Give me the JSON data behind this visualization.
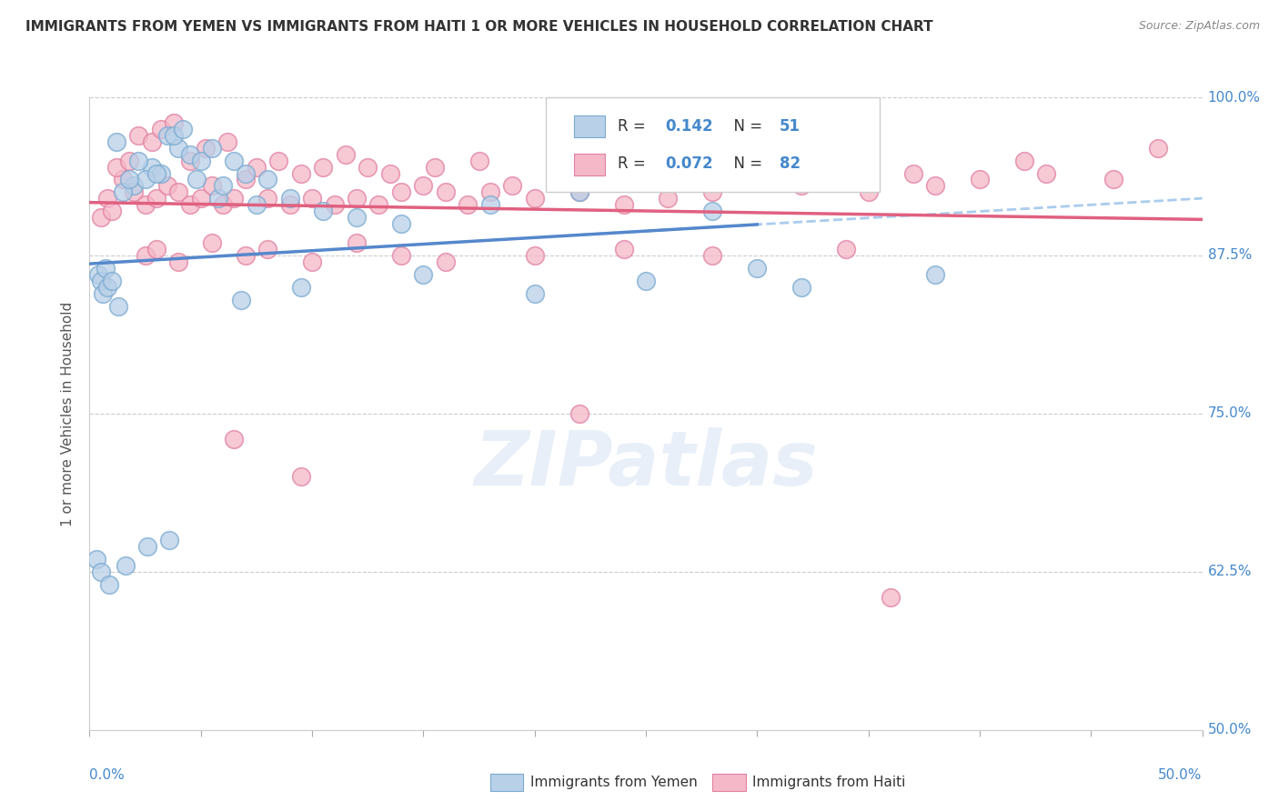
{
  "title": "IMMIGRANTS FROM YEMEN VS IMMIGRANTS FROM HAITI 1 OR MORE VEHICLES IN HOUSEHOLD CORRELATION CHART",
  "source": "Source: ZipAtlas.com",
  "ylabel_label": "1 or more Vehicles in Household",
  "legend_label1": "Immigrants from Yemen",
  "legend_label2": "Immigrants from Haiti",
  "legend_r1_val": "0.142",
  "legend_n1_val": "51",
  "legend_r2_val": "0.072",
  "legend_n2_val": "82",
  "color_yemen_fill": "#b8d0e8",
  "color_yemen_edge": "#7aaad0",
  "color_haiti_fill": "#f5b8c8",
  "color_haiti_edge": "#e080a0",
  "color_yemen_line": "#5588cc",
  "color_haiti_line": "#e06080",
  "color_dash": "#aaccee",
  "color_text_blue": "#4488cc",
  "color_title": "#333333",
  "background_color": "#ffffff",
  "xmin": 0.0,
  "xmax": 50.0,
  "ymin": 50.0,
  "ymax": 100.0,
  "y_ticks": [
    50.0,
    62.5,
    75.0,
    87.5,
    100.0
  ],
  "x_ticks": [
    0,
    5,
    10,
    15,
    20,
    25,
    30,
    35,
    40,
    45,
    50
  ],
  "yemen_x": [
    1.2,
    3.5,
    4.0,
    4.5,
    5.0,
    2.8,
    3.2,
    4.8,
    5.5,
    2.0,
    2.5,
    3.0,
    1.5,
    2.2,
    1.8,
    3.8,
    6.5,
    7.0,
    8.0,
    5.8,
    6.0,
    4.2,
    7.5,
    9.0,
    10.5,
    12.0,
    14.0,
    18.0,
    22.0,
    28.0,
    0.4,
    0.5,
    0.6,
    0.7,
    0.8,
    1.0,
    1.3,
    6.8,
    9.5,
    15.0,
    20.0,
    25.0,
    30.0,
    32.0,
    38.0,
    0.3,
    0.5,
    0.9,
    1.6,
    2.6,
    3.6
  ],
  "yemen_y": [
    96.5,
    97.0,
    96.0,
    95.5,
    95.0,
    94.5,
    94.0,
    93.5,
    96.0,
    93.0,
    93.5,
    94.0,
    92.5,
    95.0,
    93.5,
    97.0,
    95.0,
    94.0,
    93.5,
    92.0,
    93.0,
    97.5,
    91.5,
    92.0,
    91.0,
    90.5,
    90.0,
    91.5,
    92.5,
    91.0,
    86.0,
    85.5,
    84.5,
    86.5,
    85.0,
    85.5,
    83.5,
    84.0,
    85.0,
    86.0,
    84.5,
    85.5,
    86.5,
    85.0,
    86.0,
    63.5,
    62.5,
    61.5,
    63.0,
    64.5,
    65.0
  ],
  "haiti_x": [
    0.5,
    0.8,
    1.0,
    1.5,
    2.0,
    2.5,
    3.0,
    3.5,
    4.0,
    4.5,
    5.0,
    5.5,
    6.0,
    6.5,
    7.0,
    8.0,
    9.0,
    10.0,
    11.0,
    12.0,
    13.0,
    14.0,
    15.0,
    16.0,
    17.0,
    18.0,
    19.0,
    20.0,
    22.0,
    24.0,
    26.0,
    28.0,
    30.0,
    32.0,
    35.0,
    38.0,
    40.0,
    43.0,
    46.0,
    48.0,
    1.2,
    1.8,
    2.2,
    2.8,
    3.2,
    3.8,
    4.5,
    5.2,
    6.2,
    7.5,
    8.5,
    9.5,
    10.5,
    11.5,
    12.5,
    13.5,
    15.5,
    17.5,
    21.0,
    25.0,
    29.0,
    33.0,
    37.0,
    42.0,
    2.5,
    3.0,
    4.0,
    5.5,
    7.0,
    8.0,
    10.0,
    12.0,
    14.0,
    16.0,
    20.0,
    24.0,
    28.0,
    34.0,
    6.5,
    9.5,
    22.0,
    36.0
  ],
  "haiti_y": [
    90.5,
    92.0,
    91.0,
    93.5,
    92.5,
    91.5,
    92.0,
    93.0,
    92.5,
    91.5,
    92.0,
    93.0,
    91.5,
    92.0,
    93.5,
    92.0,
    91.5,
    92.0,
    91.5,
    92.0,
    91.5,
    92.5,
    93.0,
    92.5,
    91.5,
    92.5,
    93.0,
    92.0,
    92.5,
    91.5,
    92.0,
    92.5,
    93.5,
    93.0,
    92.5,
    93.0,
    93.5,
    94.0,
    93.5,
    96.0,
    94.5,
    95.0,
    97.0,
    96.5,
    97.5,
    98.0,
    95.0,
    96.0,
    96.5,
    94.5,
    95.0,
    94.0,
    94.5,
    95.5,
    94.5,
    94.0,
    94.5,
    95.0,
    94.0,
    94.5,
    94.0,
    93.5,
    94.0,
    95.0,
    87.5,
    88.0,
    87.0,
    88.5,
    87.5,
    88.0,
    87.0,
    88.5,
    87.5,
    87.0,
    87.5,
    88.0,
    87.5,
    88.0,
    73.0,
    70.0,
    75.0,
    60.5
  ]
}
